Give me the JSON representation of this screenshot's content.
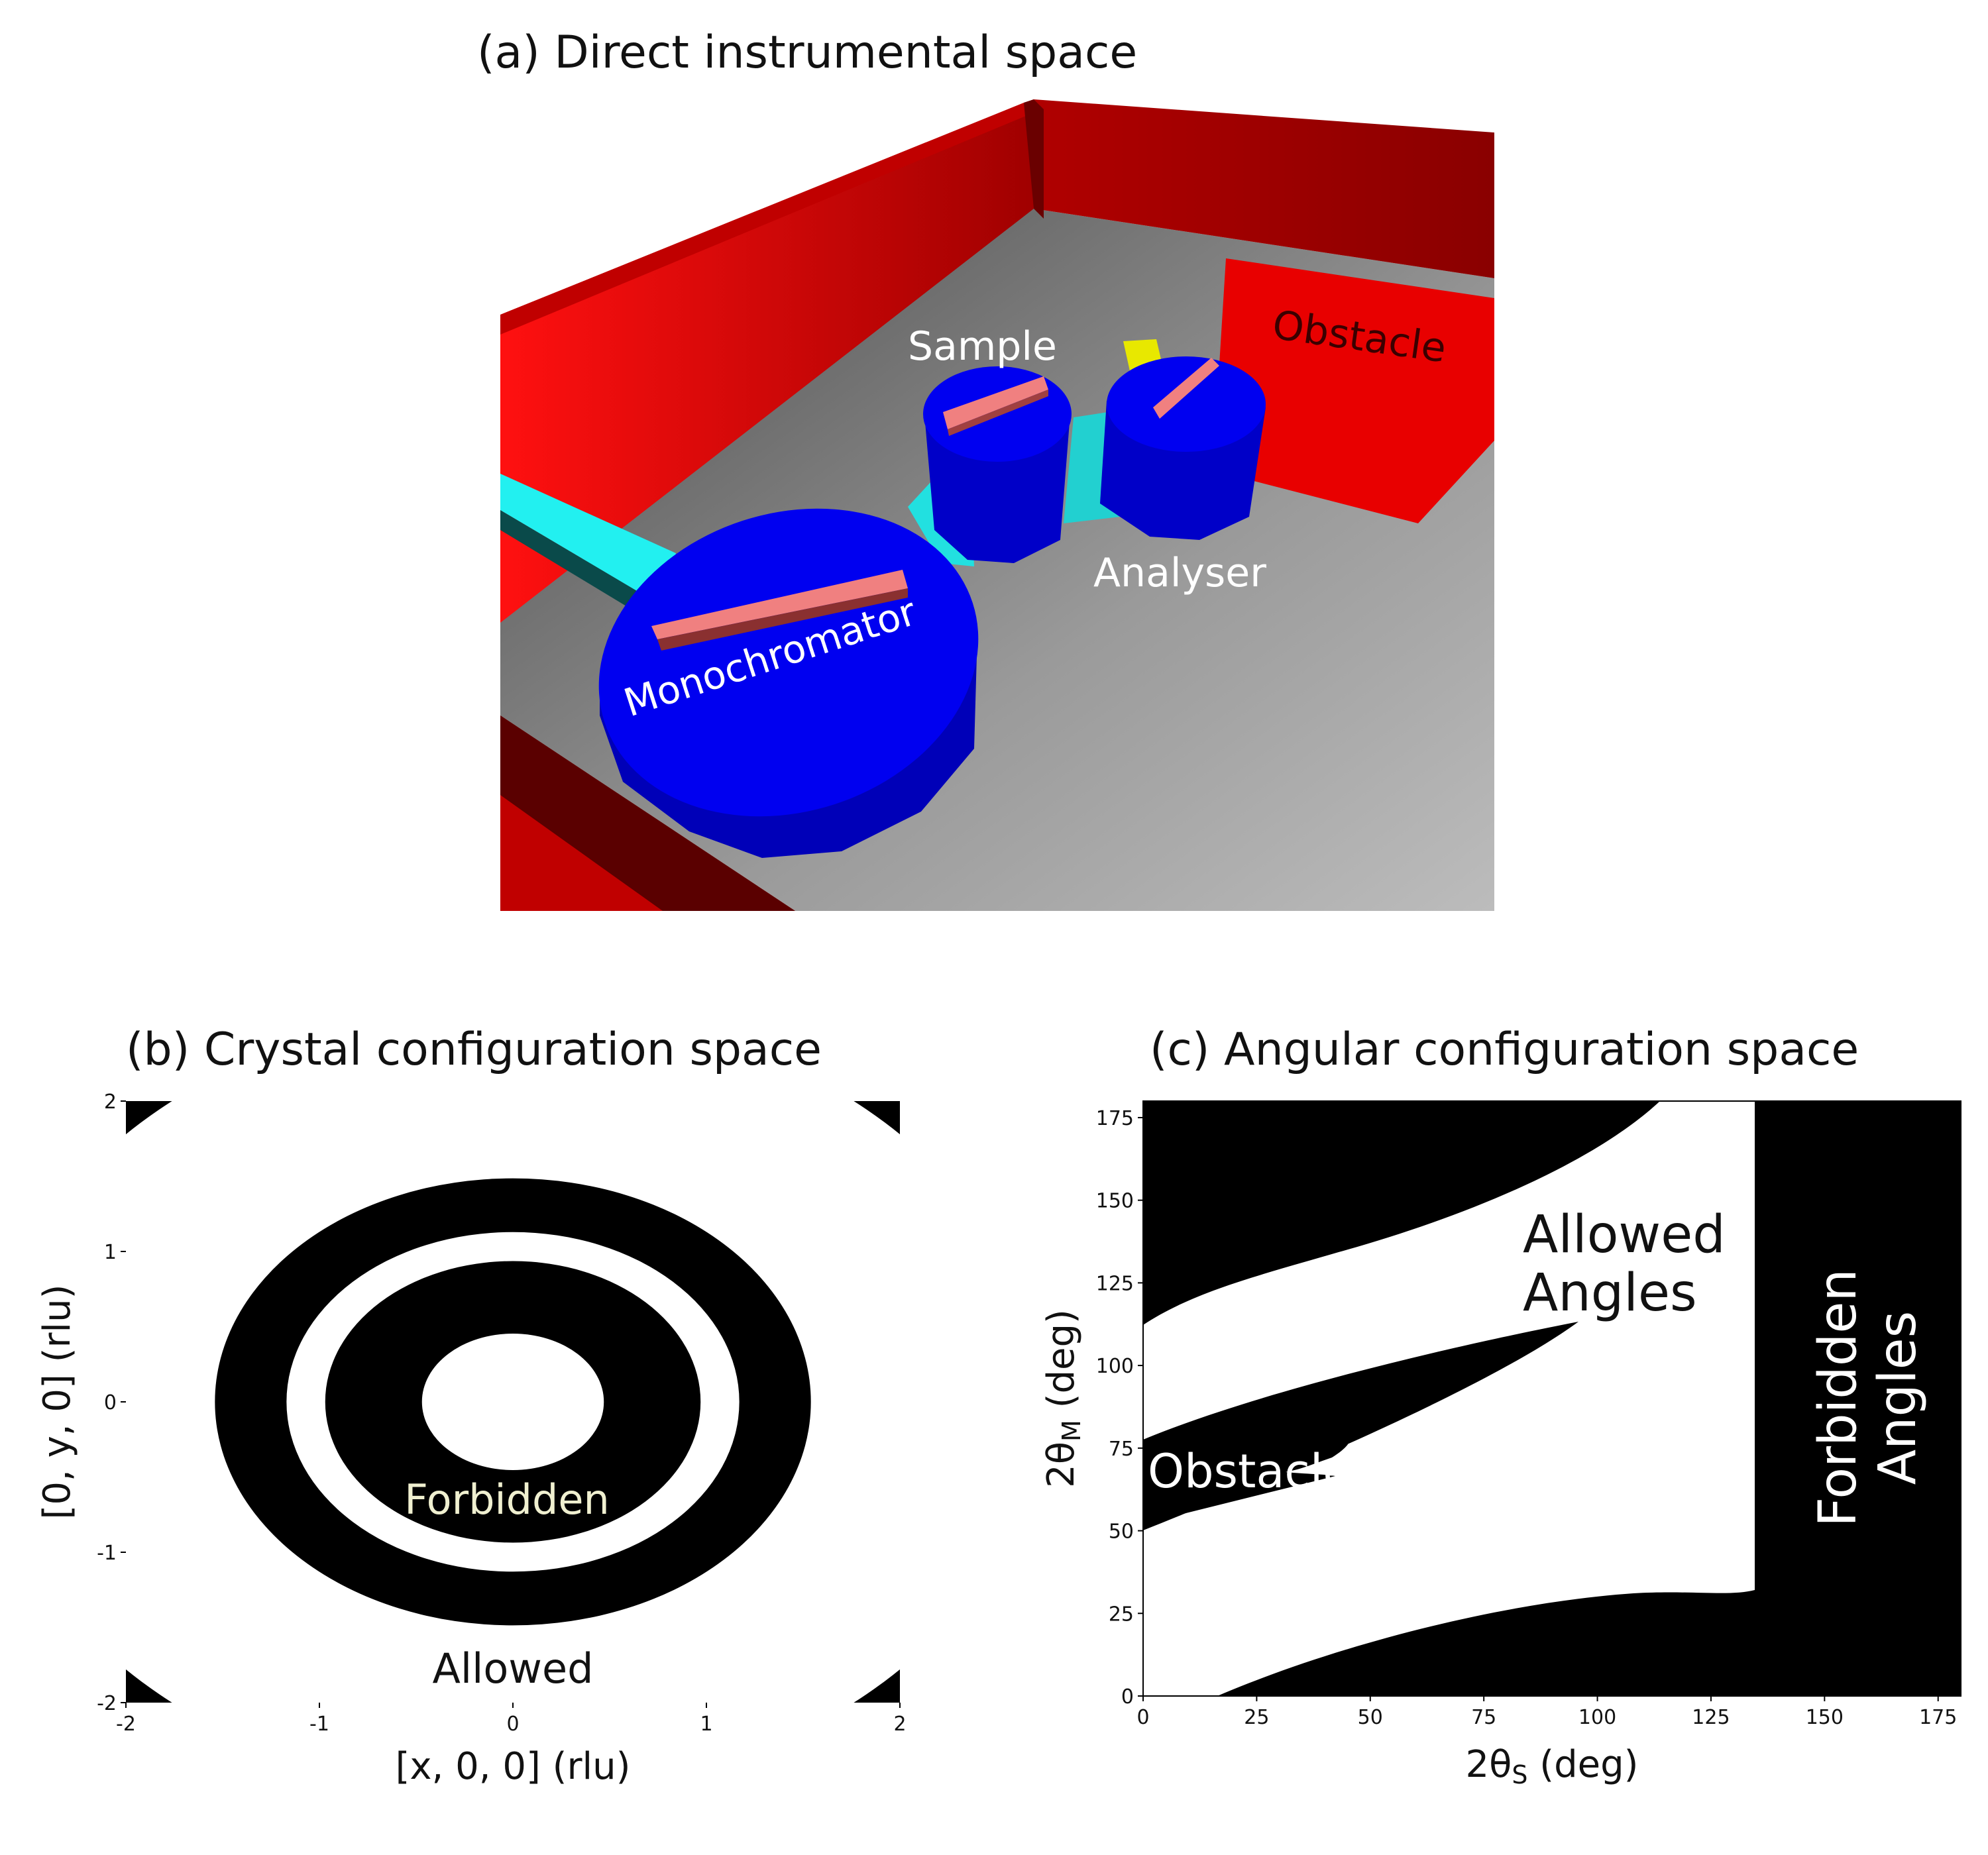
{
  "panel_a": {
    "title": "(a) Direct instrumental space",
    "labels": {
      "sample": "Sample",
      "obstacle": "Obstacle",
      "analyser": "Analyser",
      "monochromator": "Monochromator"
    },
    "colors": {
      "wall": "#e00000",
      "floor": "#8a8a8a",
      "table": "#0000ee",
      "arm": "#22eeee",
      "crystal": "#f08080",
      "detector": "#eeee00"
    }
  },
  "panel_b": {
    "title": "(b) Crystal configuration space",
    "xlabel": "[x, 0, 0] (rlu)",
    "ylabel": "[0, y, 0] (rlu)",
    "xticks": [
      "-2",
      "-1",
      "0",
      "1",
      "2"
    ],
    "yticks": [
      "-2",
      "-1",
      "0",
      "1",
      "2"
    ],
    "xlim": [
      -2,
      2
    ],
    "ylim": [
      -2,
      2
    ],
    "annotations": {
      "forbidden": "Forbidden",
      "allowed": "Allowed"
    },
    "rings_radius_rlu": [
      0.47,
      0.97,
      1.17,
      1.54,
      2.72
    ]
  },
  "panel_c": {
    "title": "(c) Angular configuration space",
    "xlabel_main": "2θ",
    "xlabel_sub": "S",
    "xlabel_unit": " (deg)",
    "ylabel_main": "2θ",
    "ylabel_sub": "M",
    "ylabel_unit": " (deg)",
    "xticks": [
      "0",
      "25",
      "50",
      "75",
      "100",
      "125",
      "150",
      "175"
    ],
    "yticks": [
      "0",
      "25",
      "50",
      "75",
      "100",
      "125",
      "150",
      "175"
    ],
    "xlim": [
      0,
      180
    ],
    "ylim": [
      0,
      180
    ],
    "annotations": {
      "allowed_line1": "Allowed",
      "allowed_line2": "Angles",
      "obstacle": "Obstacle",
      "forbidden_line1": "Forbidden",
      "forbidden_line2": "Angles"
    },
    "forbidden_from_2theta_s": 135
  }
}
